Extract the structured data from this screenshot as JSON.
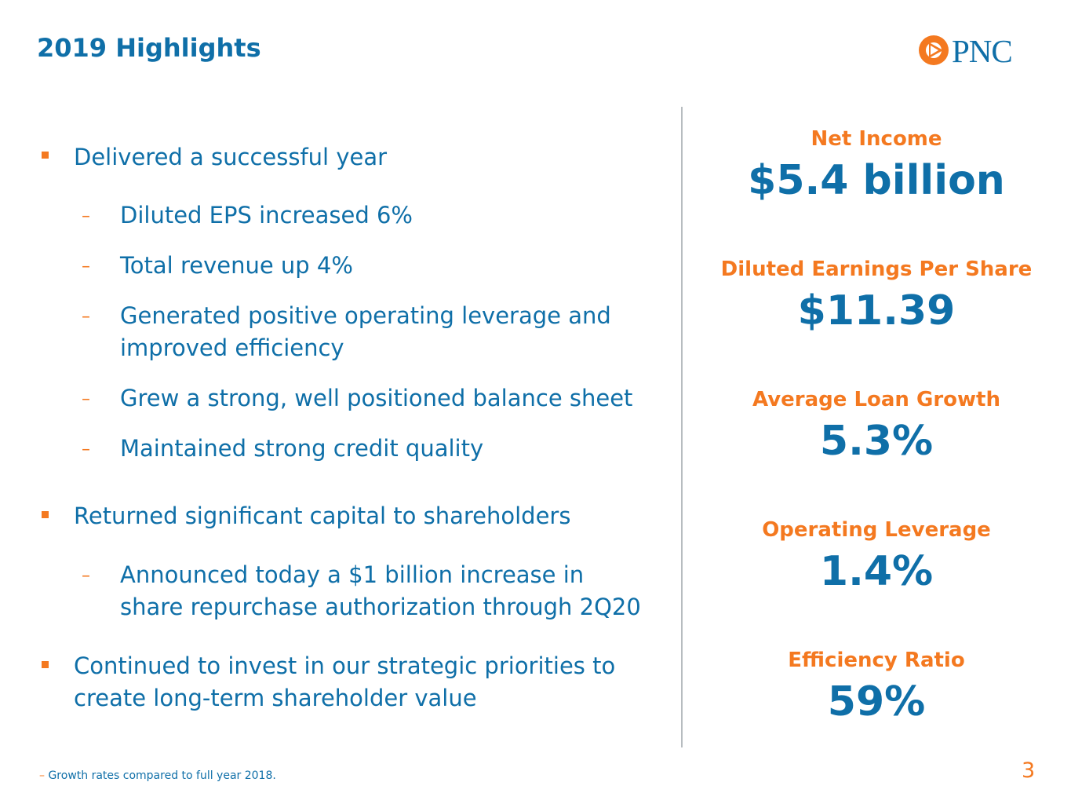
{
  "header": {
    "title": "2019 Highlights"
  },
  "brand": {
    "logo_text": "PNC",
    "accent_color": "#f47920",
    "primary_color": "#0f6fa8"
  },
  "bullets": [
    {
      "text": "Delivered a successful year"
    },
    {
      "text": "Diluted EPS increased 6%"
    },
    {
      "text": "Total revenue up 4%"
    },
    {
      "line1": "Generated positive operating leverage and",
      "line2": "improved efficiency"
    },
    {
      "text": "Grew a strong, well positioned balance sheet"
    },
    {
      "text": "Maintained strong credit quality"
    },
    {
      "text": "Returned significant capital to shareholders"
    },
    {
      "line1": "Announced today a $1 billion increase in",
      "line2": "share repurchase authorization through 2Q20"
    },
    {
      "line1": "Continued to invest in our strategic priorities to",
      "line2": "create long-term shareholder value"
    }
  ],
  "metrics": [
    {
      "label": "Net Income",
      "value": "$5.4 billion"
    },
    {
      "label": "Diluted Earnings Per Share",
      "value": "$11.39"
    },
    {
      "label": "Average Loan Growth",
      "value": "5.3%"
    },
    {
      "label": "Operating Leverage",
      "value": "1.4%"
    },
    {
      "label": "Efficiency Ratio",
      "value": "59%"
    }
  ],
  "footer": {
    "dash": "–",
    "footnote": "Growth rates compared to full year 2018.",
    "page_number": "3"
  }
}
